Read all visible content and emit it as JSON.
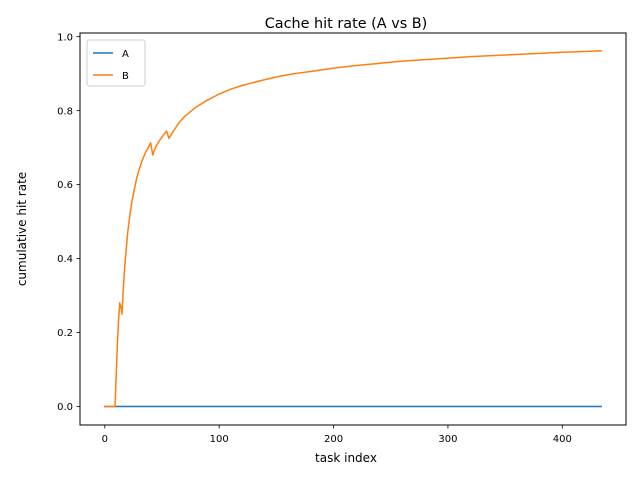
{
  "chart_data": {
    "type": "line",
    "title": "Cache hit rate (A vs B)",
    "xlabel": "task index",
    "ylabel": "cumulative hit rate",
    "xlim": [
      -21.7,
      455.7
    ],
    "ylim": [
      -0.05,
      1.01
    ],
    "xticks": [
      0,
      100,
      200,
      300,
      400
    ],
    "xtick_labels": [
      "0",
      "100",
      "200",
      "300",
      "400"
    ],
    "yticks": [
      0.0,
      0.2,
      0.4,
      0.6,
      0.8,
      1.0
    ],
    "ytick_labels": [
      "0.0",
      "0.2",
      "0.4",
      "0.6",
      "0.8",
      "1.0"
    ],
    "grid": false,
    "legend_position": "top-left",
    "series": [
      {
        "name": "A",
        "color": "#1f77b4",
        "x": [
          0,
          434
        ],
        "y": [
          0.0,
          0.0
        ]
      },
      {
        "name": "B",
        "color": "#ff7f0e",
        "x": [
          0,
          9,
          10,
          11,
          12,
          13,
          14,
          15,
          16,
          17,
          18,
          20,
          22,
          24,
          26,
          28,
          30,
          32,
          34,
          36,
          38,
          40,
          42,
          43,
          45,
          48,
          51,
          54,
          56,
          57,
          60,
          65,
          70,
          80,
          90,
          100,
          110,
          120,
          130,
          140,
          150,
          160,
          170,
          180,
          200,
          220,
          240,
          260,
          280,
          300,
          320,
          340,
          360,
          380,
          400,
          420,
          434
        ],
        "y": [
          0.0,
          0.0,
          0.09,
          0.17,
          0.23,
          0.28,
          0.27,
          0.25,
          0.31,
          0.36,
          0.4,
          0.47,
          0.52,
          0.56,
          0.59,
          0.62,
          0.64,
          0.66,
          0.675,
          0.69,
          0.7,
          0.713,
          0.68,
          0.69,
          0.705,
          0.72,
          0.733,
          0.745,
          0.725,
          0.73,
          0.745,
          0.768,
          0.785,
          0.81,
          0.829,
          0.845,
          0.858,
          0.868,
          0.876,
          0.884,
          0.891,
          0.897,
          0.902,
          0.906,
          0.915,
          0.922,
          0.928,
          0.934,
          0.938,
          0.942,
          0.946,
          0.949,
          0.952,
          0.955,
          0.958,
          0.96,
          0.962
        ]
      }
    ]
  }
}
